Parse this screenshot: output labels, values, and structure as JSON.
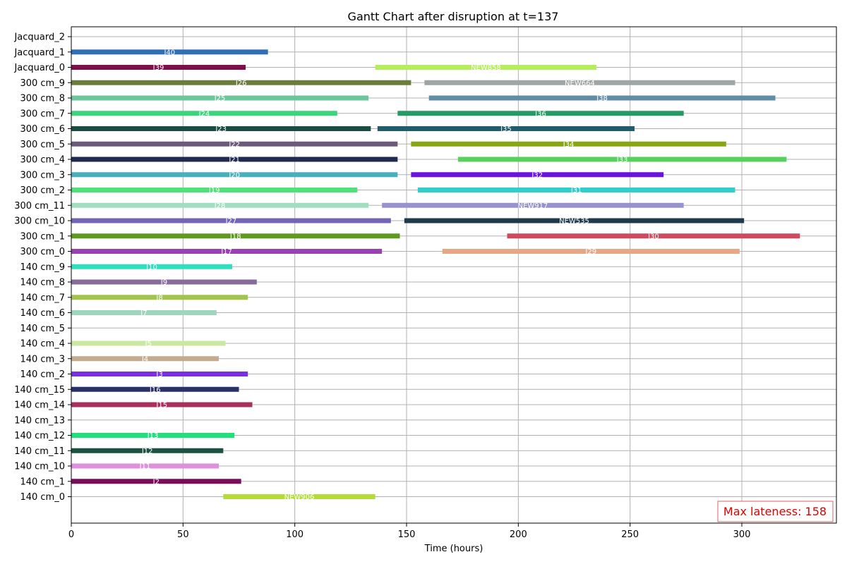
{
  "chart_data": {
    "type": "gantt",
    "title": "Gantt Chart after disruption at t=137",
    "xlabel": "Time (hours)",
    "ylabel": "",
    "xlim": [
      0,
      342
    ],
    "xticks": [
      0,
      50,
      100,
      150,
      200,
      250,
      300
    ],
    "grid": true,
    "machines": [
      "Jacquard_2",
      "Jacquard_1",
      "Jacquard_0",
      "300 cm_9",
      "300 cm_8",
      "300 cm_7",
      "300 cm_6",
      "300 cm_5",
      "300 cm_4",
      "300 cm_3",
      "300 cm_2",
      "300 cm_11",
      "300 cm_10",
      "300 cm_1",
      "300 cm_0",
      "140 cm_9",
      "140 cm_8",
      "140 cm_7",
      "140 cm_6",
      "140 cm_5",
      "140 cm_4",
      "140 cm_3",
      "140 cm_2",
      "140 cm_15",
      "140 cm_14",
      "140 cm_13",
      "140 cm_12",
      "140 cm_11",
      "140 cm_10",
      "140 cm_1",
      "140 cm_0"
    ],
    "tasks": [
      {
        "machine": "Jacquard_1",
        "label": "J40",
        "start": 0,
        "end": 88,
        "color": "#2e6fb5"
      },
      {
        "machine": "Jacquard_0",
        "label": "J39",
        "start": 0,
        "end": 78,
        "color": "#7d0f4a"
      },
      {
        "machine": "Jacquard_0",
        "label": "NEW858",
        "start": 136,
        "end": 235,
        "color": "#b5ee5a"
      },
      {
        "machine": "300 cm_9",
        "label": "J26",
        "start": 0,
        "end": 152,
        "color": "#6b7d3d"
      },
      {
        "machine": "300 cm_9",
        "label": "NEW664",
        "start": 158,
        "end": 297,
        "color": "#9fa5a5"
      },
      {
        "machine": "300 cm_8",
        "label": "J25",
        "start": 0,
        "end": 133,
        "color": "#6cc69b"
      },
      {
        "machine": "300 cm_8",
        "label": "J38",
        "start": 160,
        "end": 315,
        "color": "#5f8da6"
      },
      {
        "machine": "300 cm_7",
        "label": "J24",
        "start": 0,
        "end": 119,
        "color": "#3ad57d"
      },
      {
        "machine": "300 cm_7",
        "label": "J36",
        "start": 146,
        "end": 274,
        "color": "#239b62"
      },
      {
        "machine": "300 cm_6",
        "label": "J23",
        "start": 0,
        "end": 134,
        "color": "#1c4b42"
      },
      {
        "machine": "300 cm_6",
        "label": "J35",
        "start": 137,
        "end": 252,
        "color": "#1f5c6e"
      },
      {
        "machine": "300 cm_5",
        "label": "J22",
        "start": 0,
        "end": 146,
        "color": "#6d5a7a"
      },
      {
        "machine": "300 cm_5",
        "label": "J34",
        "start": 152,
        "end": 293,
        "color": "#88a514"
      },
      {
        "machine": "300 cm_4",
        "label": "J21",
        "start": 0,
        "end": 146,
        "color": "#1e2a52"
      },
      {
        "machine": "300 cm_4",
        "label": "J33",
        "start": 173,
        "end": 320,
        "color": "#56d15e"
      },
      {
        "machine": "300 cm_3",
        "label": "J20",
        "start": 0,
        "end": 146,
        "color": "#48b0bd"
      },
      {
        "machine": "300 cm_3",
        "label": "J32",
        "start": 152,
        "end": 265,
        "color": "#6a12e0"
      },
      {
        "machine": "300 cm_2",
        "label": "J19",
        "start": 0,
        "end": 128,
        "color": "#4fe27a"
      },
      {
        "machine": "300 cm_2",
        "label": "J31",
        "start": 155,
        "end": 297,
        "color": "#2ecfcc"
      },
      {
        "machine": "300 cm_11",
        "label": "J28",
        "start": 0,
        "end": 133,
        "color": "#9fdfbf"
      },
      {
        "machine": "300 cm_11",
        "label": "NEW917",
        "start": 139,
        "end": 274,
        "color": "#9692cf"
      },
      {
        "machine": "300 cm_10",
        "label": "J27",
        "start": 0,
        "end": 143,
        "color": "#7464b5"
      },
      {
        "machine": "300 cm_10",
        "label": "NEW535",
        "start": 149,
        "end": 301,
        "color": "#1f3a4a"
      },
      {
        "machine": "300 cm_1",
        "label": "J18",
        "start": 0,
        "end": 147,
        "color": "#5d9a1e"
      },
      {
        "machine": "300 cm_1",
        "label": "J30",
        "start": 195,
        "end": 326,
        "color": "#cf4a5e"
      },
      {
        "machine": "300 cm_0",
        "label": "J17",
        "start": 0,
        "end": 139,
        "color": "#9b3fb5"
      },
      {
        "machine": "300 cm_0",
        "label": "J29",
        "start": 166,
        "end": 299,
        "color": "#e8a685"
      },
      {
        "machine": "140 cm_9",
        "label": "J10",
        "start": 0,
        "end": 72,
        "color": "#2fe0bf"
      },
      {
        "machine": "140 cm_8",
        "label": "J9",
        "start": 0,
        "end": 83,
        "color": "#876b9a"
      },
      {
        "machine": "140 cm_7",
        "label": "J8",
        "start": 0,
        "end": 79,
        "color": "#a3c24e"
      },
      {
        "machine": "140 cm_6",
        "label": "J7",
        "start": 0,
        "end": 65,
        "color": "#9ed6bd"
      },
      {
        "machine": "140 cm_4",
        "label": "J5",
        "start": 0,
        "end": 69,
        "color": "#c9e8a0"
      },
      {
        "machine": "140 cm_3",
        "label": "J4",
        "start": 0,
        "end": 66,
        "color": "#c2ab8e"
      },
      {
        "machine": "140 cm_2",
        "label": "J3",
        "start": 0,
        "end": 79,
        "color": "#7a2fe0"
      },
      {
        "machine": "140 cm_15",
        "label": "J16",
        "start": 0,
        "end": 75,
        "color": "#2a3068"
      },
      {
        "machine": "140 cm_14",
        "label": "J15",
        "start": 0,
        "end": 81,
        "color": "#a8305e"
      },
      {
        "machine": "140 cm_12",
        "label": "J13",
        "start": 0,
        "end": 73,
        "color": "#1fe07b"
      },
      {
        "machine": "140 cm_11",
        "label": "J12",
        "start": 0,
        "end": 68,
        "color": "#1c5243"
      },
      {
        "machine": "140 cm_10",
        "label": "J11",
        "start": 0,
        "end": 66,
        "color": "#de90da"
      },
      {
        "machine": "140 cm_1",
        "label": "J2",
        "start": 0,
        "end": 76,
        "color": "#7a0d5a"
      },
      {
        "machine": "140 cm_0",
        "label": "NEW906",
        "start": 68,
        "end": 136,
        "color": "#b2dd36"
      }
    ],
    "annotation": {
      "text": "Max lateness: 158",
      "color": "#e00000",
      "placement": "bottom-right"
    }
  }
}
